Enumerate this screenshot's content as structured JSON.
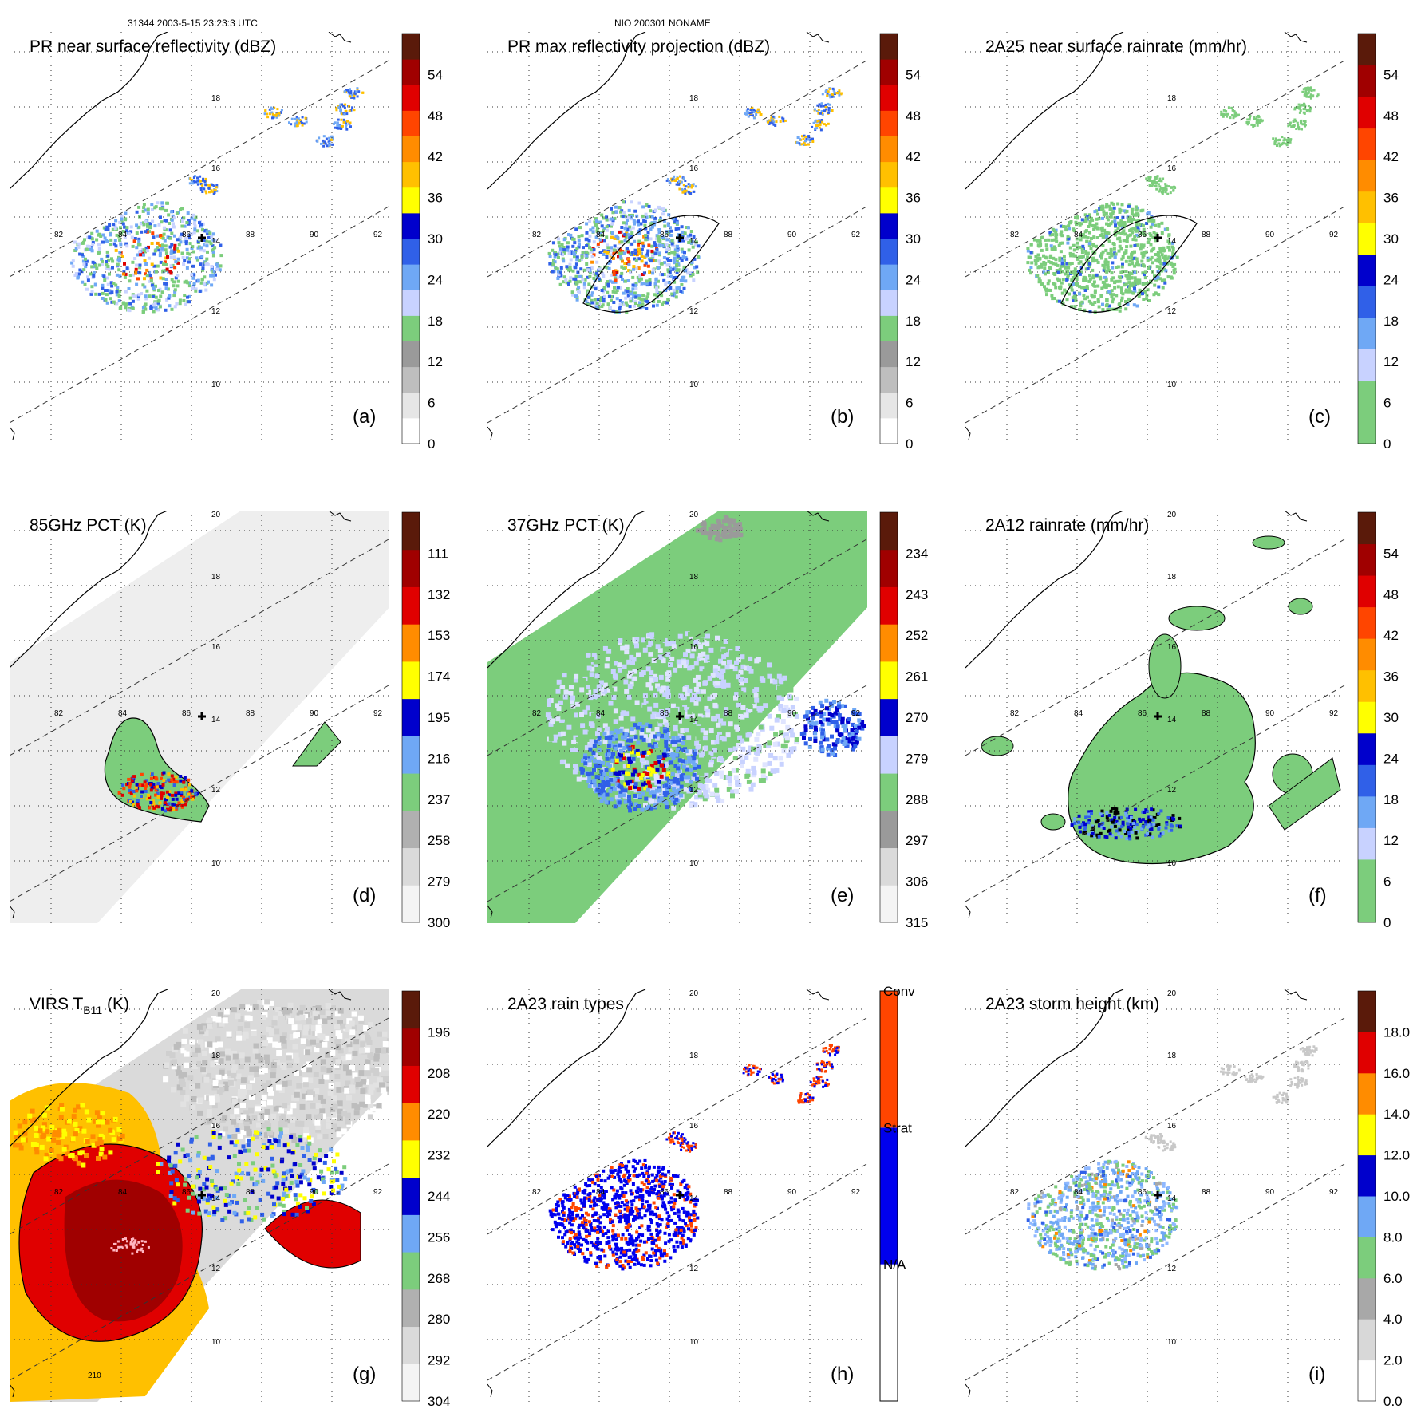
{
  "header": {
    "left": "31344 2003-5-15 23:23:3 UTC",
    "center": "NIO 200301 NONAME"
  },
  "chart_data": [
    {
      "type": "heatmap",
      "label": "(a)",
      "title": "PR near surface reflectivity (dBZ)",
      "colorbar_ticks": [
        "0",
        "6",
        "12",
        "18",
        "24",
        "30",
        "36",
        "42",
        "48",
        "54"
      ],
      "colors": [
        "#ffffff",
        "#e6e6e6",
        "#bebebe",
        "#9a9a9a",
        "#7ccd7c",
        "#c8d2ff",
        "#6fa8f5",
        "#3060e8",
        "#0000cc",
        "#ffff00",
        "#ffc000",
        "#ff8c00",
        "#ff4500",
        "#e00000",
        "#a00000",
        "#5a1a0a"
      ],
      "longitude_labels": [
        "82",
        "84",
        "86",
        "88",
        "90",
        "92"
      ],
      "latitude_labels": [
        "10",
        "12",
        "14",
        "16",
        "18"
      ],
      "swath": "pr",
      "field": "pr_small"
    },
    {
      "type": "heatmap",
      "label": "(b)",
      "title": "PR max reflectivity projection (dBZ)",
      "colorbar_ticks": [
        "0",
        "6",
        "12",
        "18",
        "24",
        "30",
        "36",
        "42",
        "48",
        "54"
      ],
      "colors": [
        "#ffffff",
        "#e6e6e6",
        "#bebebe",
        "#9a9a9a",
        "#7ccd7c",
        "#c8d2ff",
        "#6fa8f5",
        "#3060e8",
        "#0000cc",
        "#ffff00",
        "#ffc000",
        "#ff8c00",
        "#ff4500",
        "#e00000",
        "#a00000",
        "#5a1a0a"
      ],
      "longitude_labels": [
        "82",
        "84",
        "86",
        "88",
        "90",
        "92"
      ],
      "latitude_labels": [
        "10",
        "12",
        "14",
        "16",
        "18"
      ],
      "swath": "pr",
      "field": "pr_max"
    },
    {
      "type": "heatmap",
      "label": "(c)",
      "title": "2A25 near surface rainrate (mm/hr)",
      "colorbar_ticks": [
        "0",
        "6",
        "12",
        "18",
        "24",
        "30",
        "36",
        "42",
        "48",
        "54"
      ],
      "colors": [
        "#7ccd7c",
        "#7ccd7c",
        "#c8d2ff",
        "#6fa8f5",
        "#3060e8",
        "#0000cc",
        "#ffff00",
        "#ffc000",
        "#ff8c00",
        "#ff4500",
        "#e00000",
        "#a00000",
        "#5a1a0a"
      ],
      "longitude_labels": [
        "82",
        "84",
        "86",
        "88",
        "90",
        "92"
      ],
      "latitude_labels": [
        "10",
        "12",
        "14",
        "16",
        "18"
      ],
      "swath": "pr",
      "field": "pr_rain"
    },
    {
      "type": "heatmap",
      "label": "(d)",
      "title": "85GHz PCT (K)",
      "colorbar_ticks": [
        "300",
        "279",
        "258",
        "237",
        "216",
        "195",
        "174",
        "153",
        "132",
        "111"
      ],
      "colors": [
        "#f4f4f4",
        "#dadada",
        "#b0b0b0",
        "#7ccd7c",
        "#6fa8f5",
        "#0000cc",
        "#ffff00",
        "#ff8c00",
        "#e00000",
        "#a00000",
        "#5a1a0a"
      ],
      "longitude_labels": [
        "82",
        "84",
        "86",
        "88",
        "90",
        "92"
      ],
      "latitude_labels": [
        "10",
        "12",
        "14",
        "16",
        "18",
        "20"
      ],
      "swath": "tmi",
      "field": "pct85"
    },
    {
      "type": "heatmap",
      "label": "(e)",
      "title": "37GHz PCT (K)",
      "colorbar_ticks": [
        "315",
        "306",
        "297",
        "288",
        "279",
        "270",
        "261",
        "252",
        "243",
        "234"
      ],
      "colors": [
        "#f4f4f4",
        "#dadada",
        "#9a9a9a",
        "#7ccd7c",
        "#c8d2ff",
        "#0000cc",
        "#ffff00",
        "#ff8c00",
        "#e00000",
        "#a00000",
        "#5a1a0a"
      ],
      "longitude_labels": [
        "82",
        "84",
        "86",
        "88",
        "90",
        "92"
      ],
      "latitude_labels": [
        "10",
        "12",
        "14",
        "16",
        "18",
        "20"
      ],
      "swath": "tmi",
      "field": "pct37"
    },
    {
      "type": "heatmap",
      "label": "(f)",
      "title": "2A12 rainrate (mm/hr)",
      "colorbar_ticks": [
        "0",
        "6",
        "12",
        "18",
        "24",
        "30",
        "36",
        "42",
        "48",
        "54"
      ],
      "colors": [
        "#7ccd7c",
        "#7ccd7c",
        "#c8d2ff",
        "#6fa8f5",
        "#3060e8",
        "#0000cc",
        "#ffff00",
        "#ffc000",
        "#ff8c00",
        "#ff4500",
        "#e00000",
        "#a00000",
        "#5a1a0a"
      ],
      "longitude_labels": [
        "82",
        "84",
        "86",
        "88",
        "90",
        "92"
      ],
      "latitude_labels": [
        "10",
        "12",
        "14",
        "16",
        "18",
        "20"
      ],
      "swath": "none",
      "field": "tmi_rain"
    },
    {
      "type": "heatmap",
      "label": "(g)",
      "title": "VIRS T",
      "title_sub": "B11",
      "title_suffix": " (K)",
      "contour_label": "210",
      "colorbar_ticks": [
        "304",
        "292",
        "280",
        "268",
        "256",
        "244",
        "232",
        "220",
        "208",
        "196"
      ],
      "colors": [
        "#f4f4f4",
        "#dadada",
        "#b0b0b0",
        "#7ccd7c",
        "#6fa8f5",
        "#0000cc",
        "#ffff00",
        "#ff8c00",
        "#e00000",
        "#a00000",
        "#5a1a0a"
      ],
      "longitude_labels": [
        "82",
        "84",
        "86",
        "88",
        "90",
        "92"
      ],
      "latitude_labels": [
        "10",
        "12",
        "14",
        "16",
        "18",
        "20"
      ],
      "swath": "virs",
      "field": "virs"
    },
    {
      "type": "heatmap",
      "label": "(h)",
      "title": "2A23 rain types",
      "colorbar_ticks": [
        "N/A",
        "Strat",
        "Conv"
      ],
      "colors": [
        "#ffffff",
        "#0000ee",
        "#ff4500"
      ],
      "longitude_labels": [
        "82",
        "84",
        "86",
        "88",
        "90",
        "92"
      ],
      "latitude_labels": [
        "10",
        "12",
        "14",
        "16",
        "18",
        "20"
      ],
      "swath": "pr",
      "field": "raintype"
    },
    {
      "type": "heatmap",
      "label": "(i)",
      "title": "2A23 storm height (km)",
      "colorbar_ticks": [
        "0.0",
        "2.0",
        "4.0",
        "6.0",
        "8.0",
        "10.0",
        "12.0",
        "14.0",
        "16.0",
        "18.0"
      ],
      "colors": [
        "#ffffff",
        "#d8d8d8",
        "#a8a8a8",
        "#7ccd7c",
        "#6fa8f5",
        "#0000cc",
        "#ffff00",
        "#ff8c00",
        "#e00000",
        "#5a1a0a"
      ],
      "longitude_labels": [
        "82",
        "84",
        "86",
        "88",
        "90",
        "92"
      ],
      "latitude_labels": [
        "10",
        "12",
        "14",
        "16",
        "18",
        "20"
      ],
      "swath": "pr",
      "field": "stormh"
    }
  ]
}
